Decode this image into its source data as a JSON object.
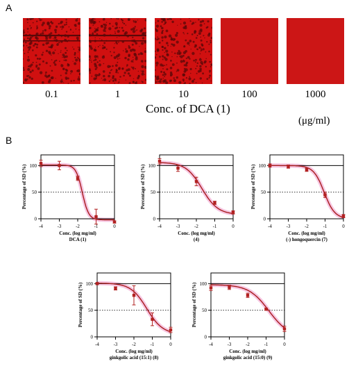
{
  "panel_a": {
    "letter": "A",
    "tiles": [
      {
        "label": "0.1",
        "style": "dense-bands"
      },
      {
        "label": "1",
        "style": "dense-bands"
      },
      {
        "label": "10",
        "style": "dense"
      },
      {
        "label": "100",
        "style": "solid"
      },
      {
        "label": "1000",
        "style": "solid"
      }
    ],
    "axis_title": "Conc. of DCA (1)",
    "unit_label": "(μg/ml)",
    "colors": {
      "tile_red": "#d01010",
      "tile_dark": "#5a0808",
      "tile_solid": "#cc1616"
    }
  },
  "panel_b": {
    "letter": "B"
  },
  "style_colors": {
    "curve": "#a81c1c",
    "point": "#b22222",
    "highlight": "#f4b7d9",
    "ref_line": "#000000",
    "grid_dotted": "#333333",
    "zero_line": "#bdbdbd"
  },
  "chart_data": [
    {
      "type": "line",
      "xlabel": "Conc. (log mg/ml)",
      "subtitle": "DCA (1)",
      "ylabel": "Percentage of SD (%)",
      "xlim": [
        -4,
        0
      ],
      "ylim": [
        0,
        120
      ],
      "xticks": [
        "-4",
        "-3",
        "-2",
        "-1",
        "0"
      ],
      "yticks": [
        "0",
        "50",
        "100"
      ],
      "points": [
        {
          "x": -4,
          "y": 104,
          "err": 6
        },
        {
          "x": -3,
          "y": 100,
          "err": 8
        },
        {
          "x": -2,
          "y": 76,
          "err": 4
        },
        {
          "x": -1,
          "y": 4,
          "err": 14
        },
        {
          "x": 0,
          "y": -6,
          "err": 2
        }
      ],
      "curve": {
        "top": 101,
        "bottom": -2,
        "ec50": -1.75,
        "hill": 2.5
      }
    },
    {
      "type": "line",
      "xlabel": "Conc. (log mg/ml)",
      "subtitle": "(4)",
      "ylabel": "Percentage of SD (%)",
      "xlim": [
        -4,
        0
      ],
      "ylim": [
        0,
        120
      ],
      "xticks": [
        "-4",
        "-3",
        "-2",
        "-1",
        "0"
      ],
      "yticks": [
        "0",
        "50",
        "100"
      ],
      "points": [
        {
          "x": -4,
          "y": 108,
          "err": 5
        },
        {
          "x": -3,
          "y": 95,
          "err": 6
        },
        {
          "x": -2,
          "y": 70,
          "err": 8
        },
        {
          "x": -1,
          "y": 30,
          "err": 3
        },
        {
          "x": 0,
          "y": 12,
          "err": 3
        }
      ],
      "curve": {
        "top": 106,
        "bottom": 8,
        "ec50": -1.7,
        "hill": 1.0
      }
    },
    {
      "type": "line",
      "xlabel": "Conc. (log mg/ml)",
      "subtitle": "(-) hongoquercin (7)",
      "ylabel": "Percentage of SD (%)",
      "xlim": [
        -4,
        0
      ],
      "ylim": [
        0,
        120
      ],
      "xticks": [
        "-4",
        "-3",
        "-2",
        "-1",
        "0"
      ],
      "yticks": [
        "0",
        "50",
        "100"
      ],
      "points": [
        {
          "x": -4,
          "y": 100,
          "err": 3
        },
        {
          "x": -3,
          "y": 98,
          "err": 3
        },
        {
          "x": -2,
          "y": 92,
          "err": 3
        },
        {
          "x": -1,
          "y": 45,
          "err": 5
        },
        {
          "x": 0,
          "y": 5,
          "err": 3
        }
      ],
      "curve": {
        "top": 100,
        "bottom": 0,
        "ec50": -1.05,
        "hill": 1.5
      }
    },
    {
      "type": "line",
      "xlabel": "Conc. (log mg/ml)",
      "subtitle": "ginkgolic acid (15:1) (8)",
      "ylabel": "Percentage of SD (%)",
      "xlim": [
        -4,
        0
      ],
      "ylim": [
        0,
        120
      ],
      "xticks": [
        "-4",
        "-3",
        "-2",
        "-1",
        "0"
      ],
      "yticks": [
        "0",
        "50",
        "100"
      ],
      "points": [
        {
          "x": -4,
          "y": 100,
          "err": 2
        },
        {
          "x": -3,
          "y": 91,
          "err": 3
        },
        {
          "x": -2,
          "y": 78,
          "err": 18
        },
        {
          "x": -1,
          "y": 33,
          "err": 12
        },
        {
          "x": 0,
          "y": 13,
          "err": 5
        }
      ],
      "curve": {
        "top": 101,
        "bottom": 5,
        "ec50": -1.3,
        "hill": 1.0
      }
    },
    {
      "type": "line",
      "xlabel": "Conc. (log mg/ml)",
      "subtitle": "ginkgolic acid (15:0) (9)",
      "ylabel": "Percentage of SD (%)",
      "xlim": [
        -4,
        0
      ],
      "ylim": [
        0,
        120
      ],
      "xticks": [
        "-4",
        "-3",
        "-2",
        "-1",
        "0"
      ],
      "yticks": [
        "0",
        "50",
        "100"
      ],
      "points": [
        {
          "x": -4,
          "y": 92,
          "err": 5
        },
        {
          "x": -3,
          "y": 93,
          "err": 4
        },
        {
          "x": -2,
          "y": 78,
          "err": 4
        },
        {
          "x": -1,
          "y": 52,
          "err": 2
        },
        {
          "x": 0,
          "y": 15,
          "err": 5
        }
      ],
      "curve": {
        "top": 98,
        "bottom": 0,
        "ec50": -0.85,
        "hill": 0.8
      }
    }
  ]
}
